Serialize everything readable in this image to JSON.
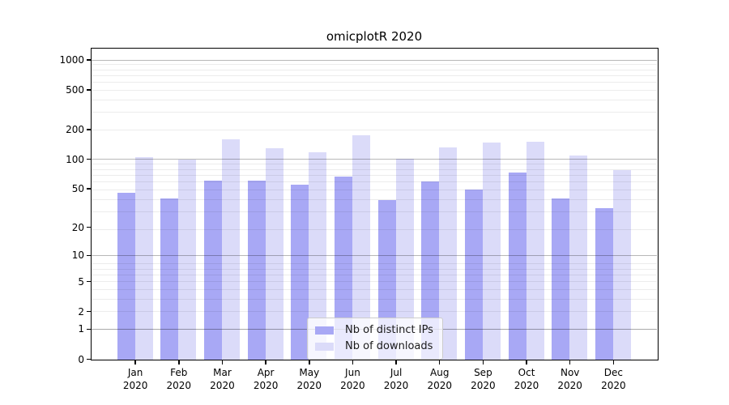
{
  "chart_data": {
    "type": "bar",
    "title": "omicplotR 2020",
    "scale": "log1p",
    "xlabel": "",
    "ylabel": "",
    "categories": [
      "Jan\n2020",
      "Feb\n2020",
      "Mar\n2020",
      "Apr\n2020",
      "May\n2020",
      "Jun\n2020",
      "Jul\n2020",
      "Aug\n2020",
      "Sep\n2020",
      "Oct\n2020",
      "Nov\n2020",
      "Dec\n2020"
    ],
    "series": [
      {
        "name": "Nb of distinct IPs",
        "color": "#a8a8f5",
        "values": [
          46,
          40,
          61,
          61,
          56,
          67,
          39,
          60,
          50,
          74,
          40,
          32
        ]
      },
      {
        "name": "Nb of downloads",
        "color": "#dbdbf9",
        "values": [
          106,
          101,
          160,
          131,
          120,
          175,
          103,
          134,
          150,
          153,
          111,
          78
        ]
      }
    ],
    "yticks": [
      0,
      1,
      2,
      5,
      10,
      20,
      50,
      100,
      200,
      500,
      1000
    ],
    "major_grid_values": [
      1,
      10,
      100,
      1000
    ],
    "ylim": [
      0,
      1300
    ],
    "grid": "horizontal",
    "legend_position": "bottom-center"
  }
}
